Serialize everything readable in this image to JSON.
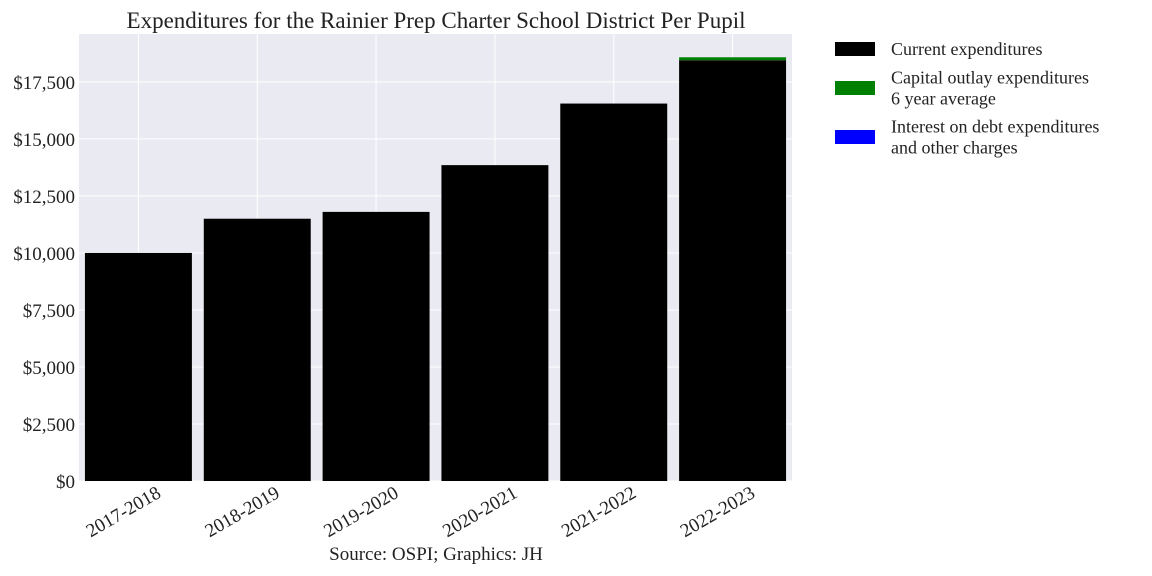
{
  "chart_data": {
    "type": "bar",
    "stacked": true,
    "title": "Expenditures for the Rainier Prep Charter School District Per Pupil",
    "xlabel": "",
    "ylabel": "",
    "categories": [
      "2017-2018",
      "2018-2019",
      "2019-2020",
      "2020-2021",
      "2021-2022",
      "2022-2023"
    ],
    "series": [
      {
        "name": "Current expenditures",
        "color": "#000000",
        "values": [
          10000,
          11500,
          11800,
          13850,
          16550,
          18450
        ]
      },
      {
        "name": "Capital outlay expenditures\n6 year average",
        "color": "#008000",
        "values": [
          0,
          0,
          0,
          0,
          0,
          130
        ]
      },
      {
        "name": "Interest on debt expenditures\nand other charges",
        "color": "#0000ff",
        "values": [
          0,
          0,
          0,
          0,
          0,
          0
        ]
      }
    ],
    "ylim": [
      0,
      19600
    ],
    "yticks": [
      0,
      2500,
      5000,
      7500,
      10000,
      12500,
      15000,
      17500
    ],
    "ytick_labels": [
      "$0",
      "$2,500",
      "$5,000",
      "$7,500",
      "$10,000",
      "$12,500",
      "$15,000",
      "$17,500"
    ],
    "grid": true,
    "legend_position": "outside-right",
    "source_note": "Source: OSPI; Graphics: JH"
  }
}
